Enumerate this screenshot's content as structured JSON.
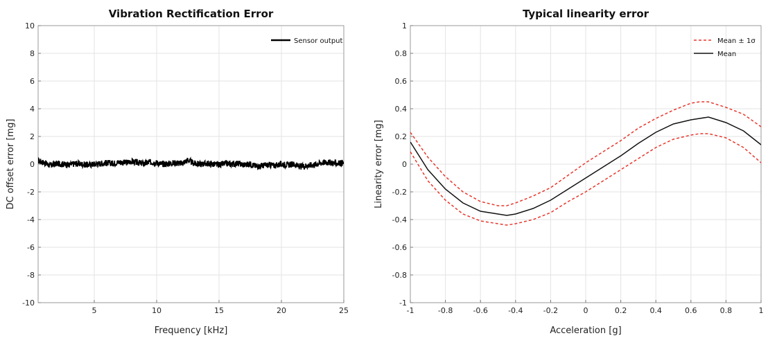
{
  "chart_data": [
    {
      "type": "line",
      "title": "Vibration Rectification Error",
      "xlabel": "Frequency [kHz]",
      "ylabel": "DC offset error [mg]",
      "xlim": [
        0.5,
        25
      ],
      "ylim": [
        -10,
        10
      ],
      "xticks": [
        5,
        10,
        15,
        20,
        25
      ],
      "yticks": [
        -10,
        -8,
        -6,
        -4,
        -2,
        0,
        2,
        4,
        6,
        8,
        10
      ],
      "grid": true,
      "legend_position": "top-right",
      "series": [
        {
          "name": "Sensor output",
          "color": "#000000",
          "style": "solid",
          "x": [
            0.5,
            1,
            1.5,
            2,
            2.5,
            3,
            3.5,
            4,
            4.5,
            5,
            5.5,
            6,
            6.5,
            7,
            7.5,
            8,
            8.5,
            9,
            9.5,
            10,
            10.5,
            11,
            11.5,
            12,
            12.5,
            13,
            13.5,
            14,
            14.5,
            15,
            15.5,
            16,
            16.5,
            17,
            17.5,
            18,
            18.5,
            19,
            19.5,
            20,
            20.5,
            21,
            21.5,
            22,
            22.5,
            23,
            23.5,
            24,
            24.5,
            25
          ],
          "y": [
            0.25,
            0.1,
            -0.1,
            0.05,
            0.0,
            -0.05,
            0.05,
            0.0,
            -0.05,
            0.0,
            0.05,
            0.1,
            0.05,
            0.15,
            0.1,
            0.2,
            0.1,
            0.05,
            0.15,
            0.1,
            0.0,
            0.05,
            0.1,
            0.05,
            0.3,
            0.05,
            0.0,
            0.05,
            0.0,
            -0.05,
            0.05,
            0.0,
            0.05,
            -0.05,
            0.0,
            -0.15,
            -0.1,
            -0.05,
            -0.1,
            0.0,
            -0.05,
            0.0,
            -0.2,
            -0.1,
            -0.05,
            0.05,
            0.15,
            0.1,
            0.05,
            0.1
          ]
        }
      ]
    },
    {
      "type": "line",
      "title": "Typical linearity error",
      "xlabel": "Acceleration [g]",
      "ylabel": "Linearity error [mg]",
      "xlim": [
        -1,
        1
      ],
      "ylim": [
        -1,
        1
      ],
      "xticks": [
        -1,
        -0.8,
        -0.6,
        -0.4,
        -0.2,
        0,
        0.2,
        0.4,
        0.6,
        0.8,
        1
      ],
      "yticks": [
        -1,
        -0.8,
        -0.6,
        -0.4,
        -0.2,
        0,
        0.2,
        0.4,
        0.6,
        0.8,
        1
      ],
      "grid": true,
      "legend_position": "top-right",
      "legend_labels": [
        "Mean ± 1σ",
        "Mean"
      ],
      "series": [
        {
          "name": "Mean ± 1σ",
          "color": "#e8352a",
          "style": "dashed",
          "x": [
            -1,
            -0.9,
            -0.8,
            -0.7,
            -0.6,
            -0.5,
            -0.45,
            -0.4,
            -0.3,
            -0.2,
            -0.1,
            0,
            0.1,
            0.2,
            0.3,
            0.4,
            0.5,
            0.6,
            0.65,
            0.7,
            0.8,
            0.9,
            1
          ],
          "y": [
            0.23,
            0.05,
            -0.09,
            -0.2,
            -0.27,
            -0.3,
            -0.3,
            -0.28,
            -0.23,
            -0.17,
            -0.08,
            0.01,
            0.09,
            0.17,
            0.26,
            0.33,
            0.39,
            0.44,
            0.45,
            0.45,
            0.41,
            0.36,
            0.27
          ]
        },
        {
          "name": "Mean",
          "color": "#111111",
          "style": "solid",
          "x": [
            -1,
            -0.9,
            -0.8,
            -0.7,
            -0.6,
            -0.5,
            -0.45,
            -0.4,
            -0.3,
            -0.2,
            -0.1,
            0,
            0.1,
            0.2,
            0.3,
            0.4,
            0.5,
            0.6,
            0.65,
            0.7,
            0.8,
            0.9,
            1
          ],
          "y": [
            0.16,
            -0.04,
            -0.18,
            -0.28,
            -0.34,
            -0.36,
            -0.37,
            -0.36,
            -0.32,
            -0.26,
            -0.18,
            -0.1,
            -0.02,
            0.06,
            0.15,
            0.23,
            0.29,
            0.32,
            0.33,
            0.34,
            0.3,
            0.24,
            0.14
          ]
        },
        {
          "name": "Mean ± 1σ",
          "color": "#e8352a",
          "style": "dashed",
          "x": [
            -1,
            -0.9,
            -0.8,
            -0.7,
            -0.6,
            -0.5,
            -0.45,
            -0.4,
            -0.3,
            -0.2,
            -0.1,
            0,
            0.1,
            0.2,
            0.3,
            0.4,
            0.5,
            0.6,
            0.65,
            0.7,
            0.8,
            0.9,
            1
          ],
          "y": [
            0.09,
            -0.12,
            -0.26,
            -0.36,
            -0.41,
            -0.43,
            -0.44,
            -0.43,
            -0.4,
            -0.35,
            -0.27,
            -0.2,
            -0.12,
            -0.04,
            0.04,
            0.12,
            0.18,
            0.21,
            0.22,
            0.22,
            0.19,
            0.12,
            0.01
          ]
        }
      ]
    }
  ]
}
